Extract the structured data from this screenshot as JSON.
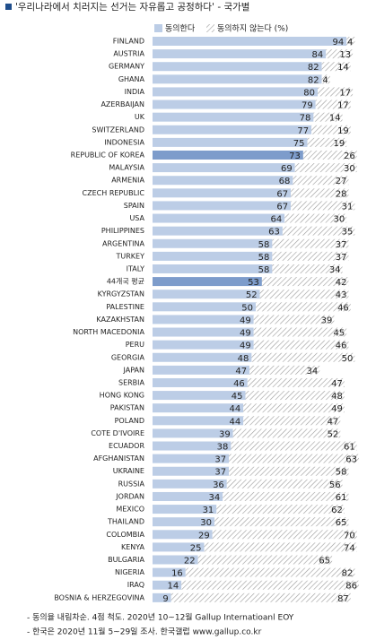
{
  "chart_data": {
    "type": "stacked-bar-horizontal",
    "title": "'우리나라에서 치러지는 선거는 자유롭고 공정하다' - 국가별",
    "categories": [
      "FINLAND",
      "AUSTRIA",
      "GERMANY",
      "GHANA",
      "INDIA",
      "AZERBAIJAN",
      "UK",
      "SWITZERLAND",
      "INDONESIA",
      "REPUBLIC OF KOREA",
      "MALAYSIA",
      "ARMENIA",
      "CZECH REPUBLIC",
      "SPAIN",
      "USA",
      "PHILIPPINES",
      "ARGENTINA",
      "TURKEY",
      "ITALY",
      "44개국 평균",
      "KYRGYZSTAN",
      "PALESTINE",
      "KAZAKHSTAN",
      "NORTH MACEDONIA",
      "PERU",
      "GEORGIA",
      "JAPAN",
      "SERBIA",
      "HONG KONG",
      "PAKISTAN",
      "POLAND",
      "COTE D'IVOIRE",
      "ECUADOR",
      "AFGHANISTAN",
      "UKRAINE",
      "RUSSIA",
      "JORDAN",
      "MEXICO",
      "THAILAND",
      "COLOMBIA",
      "KENYA",
      "BULGARIA",
      "NIGERIA",
      "IRAQ",
      "BOSNIA & HERZEGOVINA"
    ],
    "series": [
      {
        "name": "동의한다",
        "color": "#bccde6",
        "highlight_color": "#7d9ccb",
        "highlight": [
          "REPUBLIC OF KOREA",
          "44개국 평균"
        ],
        "values": [
          94,
          84,
          82,
          82,
          80,
          79,
          78,
          77,
          75,
          73,
          69,
          68,
          67,
          67,
          64,
          63,
          58,
          58,
          58,
          53,
          52,
          50,
          49,
          49,
          49,
          48,
          47,
          46,
          45,
          44,
          44,
          39,
          38,
          37,
          37,
          36,
          34,
          31,
          30,
          29,
          25,
          22,
          16,
          14,
          9
        ]
      },
      {
        "name": "동의하지 않는다 (%)",
        "color": "#9a9a9a",
        "pattern": "hatch",
        "values": [
          4,
          13,
          14,
          4,
          17,
          17,
          14,
          19,
          19,
          26,
          30,
          27,
          28,
          31,
          30,
          35,
          37,
          37,
          34,
          42,
          43,
          46,
          39,
          45,
          46,
          50,
          34,
          47,
          48,
          49,
          47,
          52,
          61,
          63,
          58,
          56,
          61,
          62,
          65,
          70,
          74,
          65,
          82,
          86,
          87
        ]
      }
    ],
    "notes": [
      "- 동의율 내림차순. 4점 척도. 2020년 10~12월 Gallup Internatioanl EOY",
      "- 한국은 2020년 11월 5~29일 조사. 한국갤럽 www.gallup.co.kr"
    ]
  }
}
